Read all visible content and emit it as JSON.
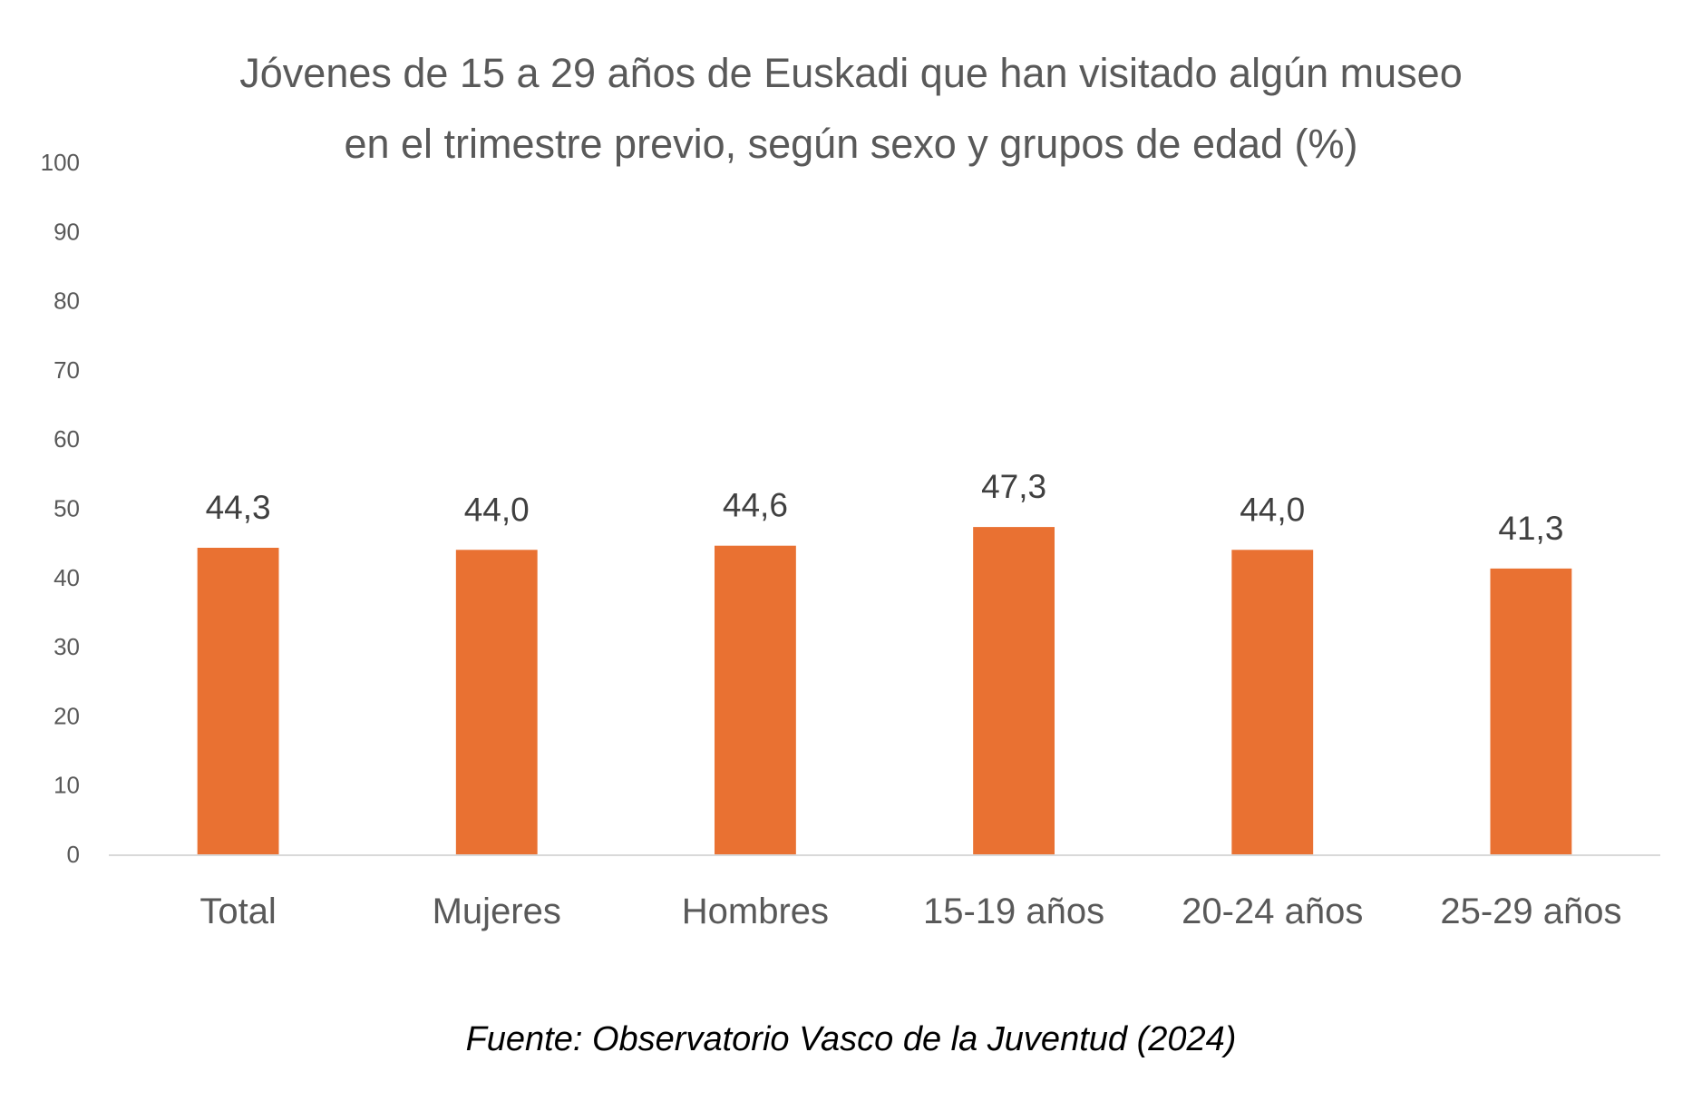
{
  "chart_data": {
    "type": "bar",
    "title": [
      "Jóvenes de 15 a 29 años de Euskadi que han visitado algún museo",
      "en el trimestre previo, según sexo y grupos de edad (%)"
    ],
    "categories": [
      "Total",
      "Mujeres",
      "Hombres",
      "15-19 años",
      "20-24 años",
      "25-29 años"
    ],
    "values": [
      44.3,
      44.0,
      44.6,
      47.3,
      44.0,
      41.3
    ],
    "data_labels": [
      "44,3",
      "44,0",
      "44,6",
      "47,3",
      "44,0",
      "41,3"
    ],
    "ylim": [
      0,
      100
    ],
    "yticks": [
      0,
      10,
      20,
      30,
      40,
      50,
      60,
      70,
      80,
      90,
      100
    ],
    "xlabel": "",
    "ylabel": "",
    "grid": false,
    "legend": "none",
    "colors": {
      "bar": "#E97132",
      "axis": "#D9D9D9",
      "tick_text": "#595959",
      "label_text": "#404040"
    }
  },
  "source": "Fuente: Observatorio Vasco de la Juventud (2024)"
}
